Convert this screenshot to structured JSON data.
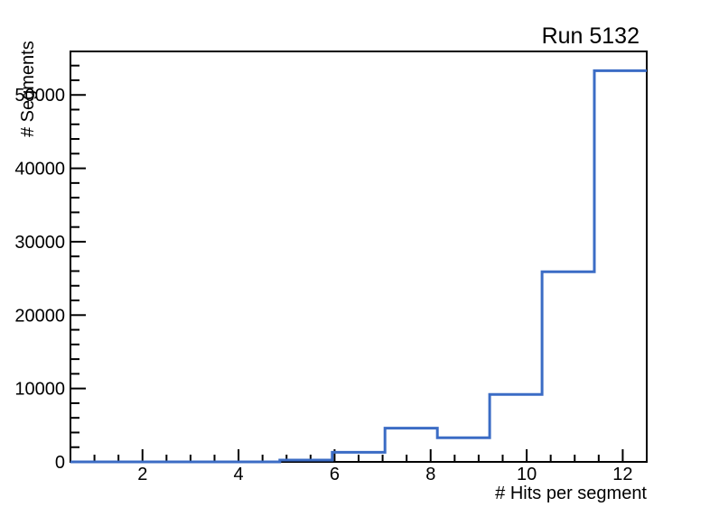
{
  "title": "Run 5132",
  "chart_data": {
    "type": "bar",
    "subtype": "step-histogram",
    "title": "Run 5132",
    "xlabel": "# Hits per segment",
    "ylabel": "# Segments",
    "xlim": [
      0.5,
      12.5
    ],
    "ylim": [
      0,
      55930
    ],
    "bin_edges": [
      0.5,
      1.59,
      2.68,
      3.77,
      4.86,
      5.95,
      7.05,
      8.14,
      9.23,
      10.32,
      11.41,
      12.5
    ],
    "values": [
      0,
      0,
      0,
      0,
      250,
      1300,
      4600,
      3300,
      9200,
      25900,
      53300
    ],
    "x_major_ticks": [
      2,
      4,
      6,
      8,
      10,
      12
    ],
    "x_minor_step": 0.5,
    "y_major_ticks": [
      0,
      10000,
      20000,
      30000,
      40000,
      50000
    ],
    "y_minor_step": 2000,
    "line_color": "#3b6cc5",
    "frame_color": "#000000",
    "background_color": "#ffffff",
    "grid": false,
    "legend": null
  }
}
